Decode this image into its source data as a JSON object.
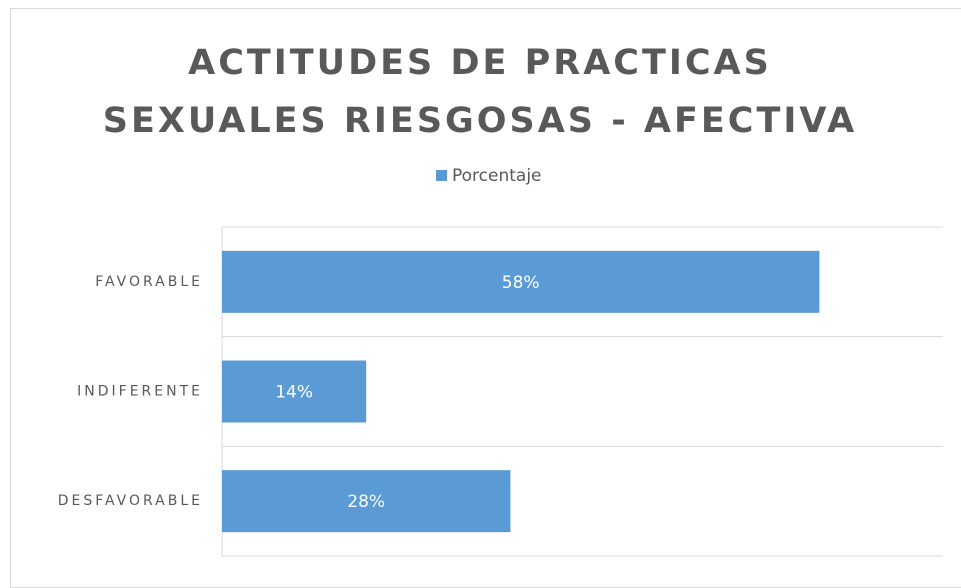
{
  "chart_data": {
    "type": "bar",
    "orientation": "horizontal",
    "title": "ACTITUDES DE PRACTICAS SEXUALES RIESGOSAS - AFECTIVA",
    "categories": [
      "FAVORABLE",
      "INDIFERENTE",
      "DESFAVORABLE"
    ],
    "series": [
      {
        "name": "Porcentaje",
        "color": "#5b9bd5",
        "values": [
          58,
          14,
          28
        ],
        "value_labels": [
          "58%",
          "14%",
          "28%"
        ]
      }
    ],
    "xlim": [
      0,
      70
    ],
    "legend": "top"
  }
}
